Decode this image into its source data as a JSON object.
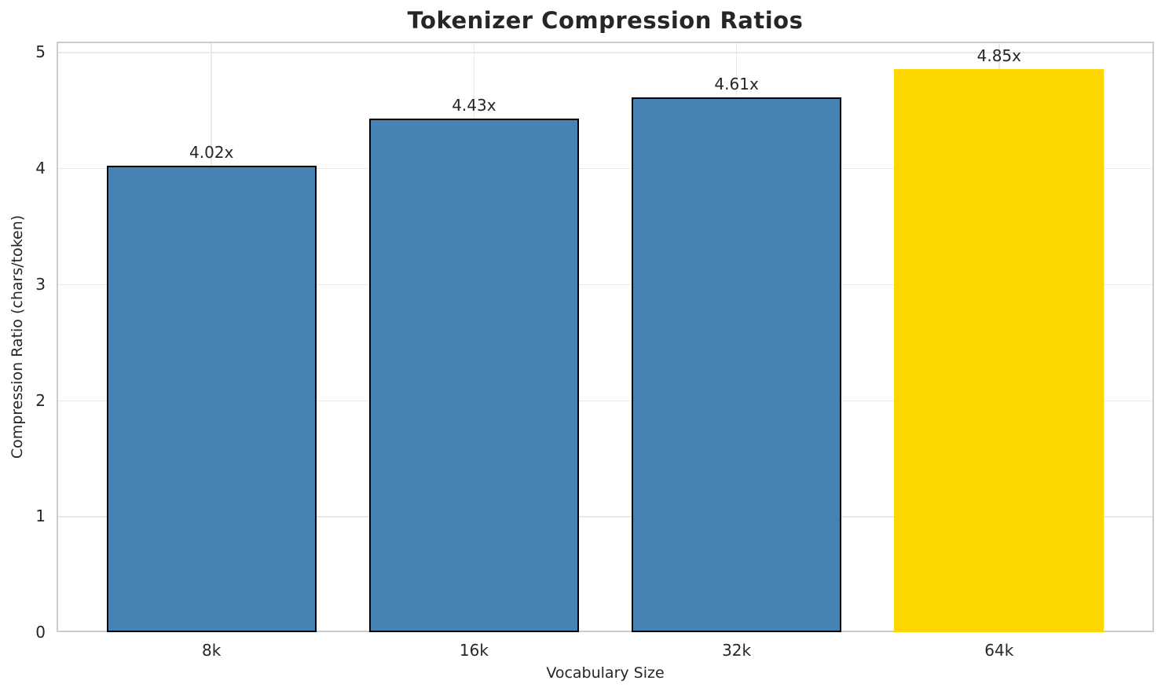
{
  "chart_data": {
    "type": "bar",
    "title": "Tokenizer Compression Ratios",
    "xlabel": "Vocabulary Size",
    "ylabel": "Compression Ratio (chars/token)",
    "categories": [
      "8k",
      "16k",
      "32k",
      "64k"
    ],
    "values": [
      4.02,
      4.43,
      4.61,
      4.85
    ],
    "bar_labels": [
      "4.02x",
      "4.43x",
      "4.61x",
      "4.85x"
    ],
    "bar_colors": [
      "#4682B4",
      "#4682B4",
      "#4682B4",
      "#FFD700"
    ],
    "bar_edge_colors": [
      "#000000",
      "#000000",
      "#000000",
      "none"
    ],
    "highlighted_category": "64k",
    "ylim": [
      0,
      5.09
    ],
    "yticks": [
      0,
      1,
      2,
      3,
      4,
      5
    ],
    "ytick_labels": [
      "0",
      "1",
      "2",
      "3",
      "4",
      "5"
    ],
    "bar_width_fraction": 0.8,
    "grid": "both",
    "legend": "none",
    "colors": {
      "bar_default": "#4682B4",
      "bar_highlight": "#FFD700",
      "bar_edge": "#000000",
      "grid": "#e9e9e9",
      "spine": "#cccccc",
      "text": "#262626",
      "background": "#ffffff"
    }
  }
}
